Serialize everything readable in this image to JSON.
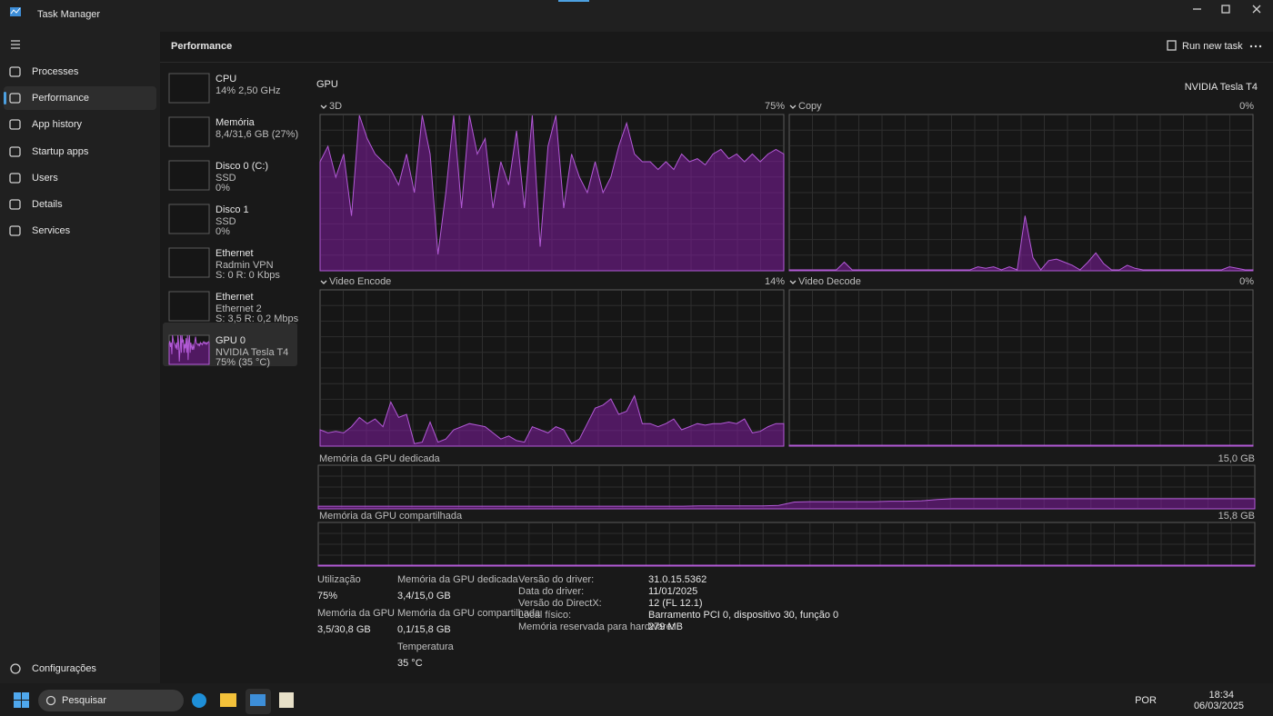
{
  "window": {
    "title": "Task Manager"
  },
  "nav": {
    "items": [
      "Processes",
      "Performance",
      "App history",
      "Startup apps",
      "Users",
      "Details",
      "Services"
    ],
    "selected": 1,
    "settings": "Configurações"
  },
  "toolbar": {
    "title": "Performance",
    "run_new_task": "Run new task"
  },
  "devices": [
    {
      "name": "CPU",
      "lines": [
        "14% 2,50 GHz"
      ]
    },
    {
      "name": "Memória",
      "lines": [
        "8,4/31,6 GB (27%)"
      ]
    },
    {
      "name": "Disco 0 (C:)",
      "lines": [
        "SSD",
        "0%"
      ]
    },
    {
      "name": "Disco 1",
      "lines": [
        "SSD",
        "0%"
      ]
    },
    {
      "name": "Ethernet",
      "lines": [
        "Radmin VPN",
        "S: 0 R: 0 Kbps"
      ]
    },
    {
      "name": "Ethernet",
      "lines": [
        "Ethernet 2",
        "S: 3,5 R: 0,2 Mbps"
      ]
    },
    {
      "name": "GPU 0",
      "lines": [
        "NVIDIA Tesla T4",
        "75% (35 °C)"
      ]
    }
  ],
  "gpu": {
    "title": "GPU",
    "model": "NVIDIA Tesla T4",
    "graphs": [
      {
        "label": "3D",
        "value_label": "75%",
        "values": [
          70,
          80,
          60,
          75,
          35,
          100,
          85,
          75,
          70,
          65,
          55,
          75,
          50,
          100,
          75,
          10,
          50,
          100,
          40,
          100,
          75,
          85,
          40,
          70,
          55,
          90,
          40,
          100,
          15,
          80,
          100,
          40,
          75,
          60,
          50,
          70,
          50,
          60,
          80,
          95,
          75,
          70,
          70,
          65,
          70,
          65,
          75,
          70,
          72,
          68,
          75,
          78,
          72,
          75,
          70,
          75,
          70,
          75,
          78,
          75
        ]
      },
      {
        "label": "Copy",
        "value_label": "0%",
        "values": [
          0,
          0,
          0,
          0,
          0,
          0,
          0,
          5,
          0,
          0,
          0,
          0,
          0,
          0,
          0,
          0,
          0,
          0,
          0,
          0,
          0,
          0,
          0,
          0,
          2,
          1,
          2,
          0,
          2,
          0,
          35,
          8,
          0,
          6,
          7,
          5,
          3,
          0,
          5,
          11,
          4,
          0,
          0,
          3,
          1,
          0,
          0,
          0,
          0,
          0,
          0,
          0,
          0,
          0,
          0,
          0,
          2,
          1,
          0,
          0
        ]
      },
      {
        "label": "Video Encode",
        "value_label": "14%",
        "values": [
          10,
          8,
          9,
          8,
          12,
          18,
          14,
          17,
          12,
          28,
          18,
          20,
          1,
          2,
          15,
          2,
          4,
          10,
          12,
          14,
          13,
          12,
          8,
          4,
          6,
          3,
          2,
          12,
          10,
          8,
          12,
          10,
          1,
          4,
          14,
          24,
          26,
          30,
          20,
          22,
          32,
          14,
          14,
          12,
          14,
          17,
          10,
          12,
          14,
          13,
          14,
          14,
          15,
          14,
          17,
          8,
          9,
          12,
          14,
          14
        ]
      },
      {
        "label": "Video Decode",
        "value_label": "0%",
        "values": [
          0,
          0,
          0,
          0,
          0,
          0,
          0,
          0,
          0,
          0,
          0,
          0,
          0,
          0,
          0,
          0,
          0,
          0,
          0,
          0,
          0,
          0,
          0,
          0,
          0,
          0,
          0,
          0,
          0,
          0,
          0,
          0,
          0,
          0,
          0,
          0,
          0,
          0,
          0,
          0,
          0,
          0,
          0,
          0,
          0,
          0,
          0,
          0,
          0,
          0,
          0,
          0,
          0,
          0,
          0,
          0,
          0,
          0,
          0,
          0
        ]
      }
    ],
    "memory_graphs": [
      {
        "label": "Memória da GPU dedicada",
        "max_label": "15,0 GB",
        "values": [
          4,
          4,
          4,
          4,
          4,
          4,
          4,
          4,
          4,
          4,
          4,
          4,
          4,
          4,
          4,
          4,
          4,
          4,
          4,
          4,
          4,
          4,
          4,
          4,
          5,
          5,
          5,
          5,
          5,
          6,
          14,
          15,
          15,
          15,
          15,
          15,
          16,
          16,
          17,
          20,
          22,
          22,
          22,
          22,
          22,
          22,
          22,
          22,
          22,
          22,
          22,
          22,
          22,
          22,
          22,
          22,
          22,
          22,
          22,
          22
        ]
      },
      {
        "label": "Memória da GPU compartilhada",
        "max_label": "15,8 GB",
        "values": [
          0,
          0,
          0,
          0,
          0,
          0,
          0,
          0,
          0,
          0,
          0,
          0,
          0,
          0,
          0,
          0,
          0,
          0,
          0,
          0,
          0,
          0,
          0,
          0,
          0,
          0,
          0,
          0,
          0,
          0,
          0,
          0,
          0,
          0,
          0,
          0,
          0,
          0,
          0,
          0,
          0,
          0,
          0,
          0,
          0,
          0,
          0,
          0,
          0,
          0,
          0,
          0,
          0,
          0,
          0,
          0,
          0,
          0,
          0,
          0
        ]
      }
    ],
    "stats": [
      {
        "label": "Utilização",
        "value": "75%"
      },
      {
        "label": "Memória da GPU",
        "value": "3,5/30,8 GB"
      },
      {
        "label": "Memória da GPU dedicada",
        "value": "3,4/15,0 GB"
      },
      {
        "label": "Memória da GPU compartilhada",
        "value": "0,1/15,8 GB"
      },
      {
        "label": "Temperatura",
        "value": "35 °C"
      }
    ],
    "details": [
      {
        "label": "Versão do driver:",
        "value": "31.0.15.5362"
      },
      {
        "label": "Data do driver:",
        "value": "11/01/2025"
      },
      {
        "label": "Versão do DirectX:",
        "value": "12 (FL 12.1)"
      },
      {
        "label": "Local físico:",
        "value": "Barramento PCI 0, dispositivo 30, função 0"
      },
      {
        "label": "Memória reservada para hardware:",
        "value": "279 MB"
      }
    ]
  },
  "taskbar": {
    "search": "Pesquisar",
    "language": "POR",
    "time": "18:34",
    "date": "06/03/2025"
  }
}
